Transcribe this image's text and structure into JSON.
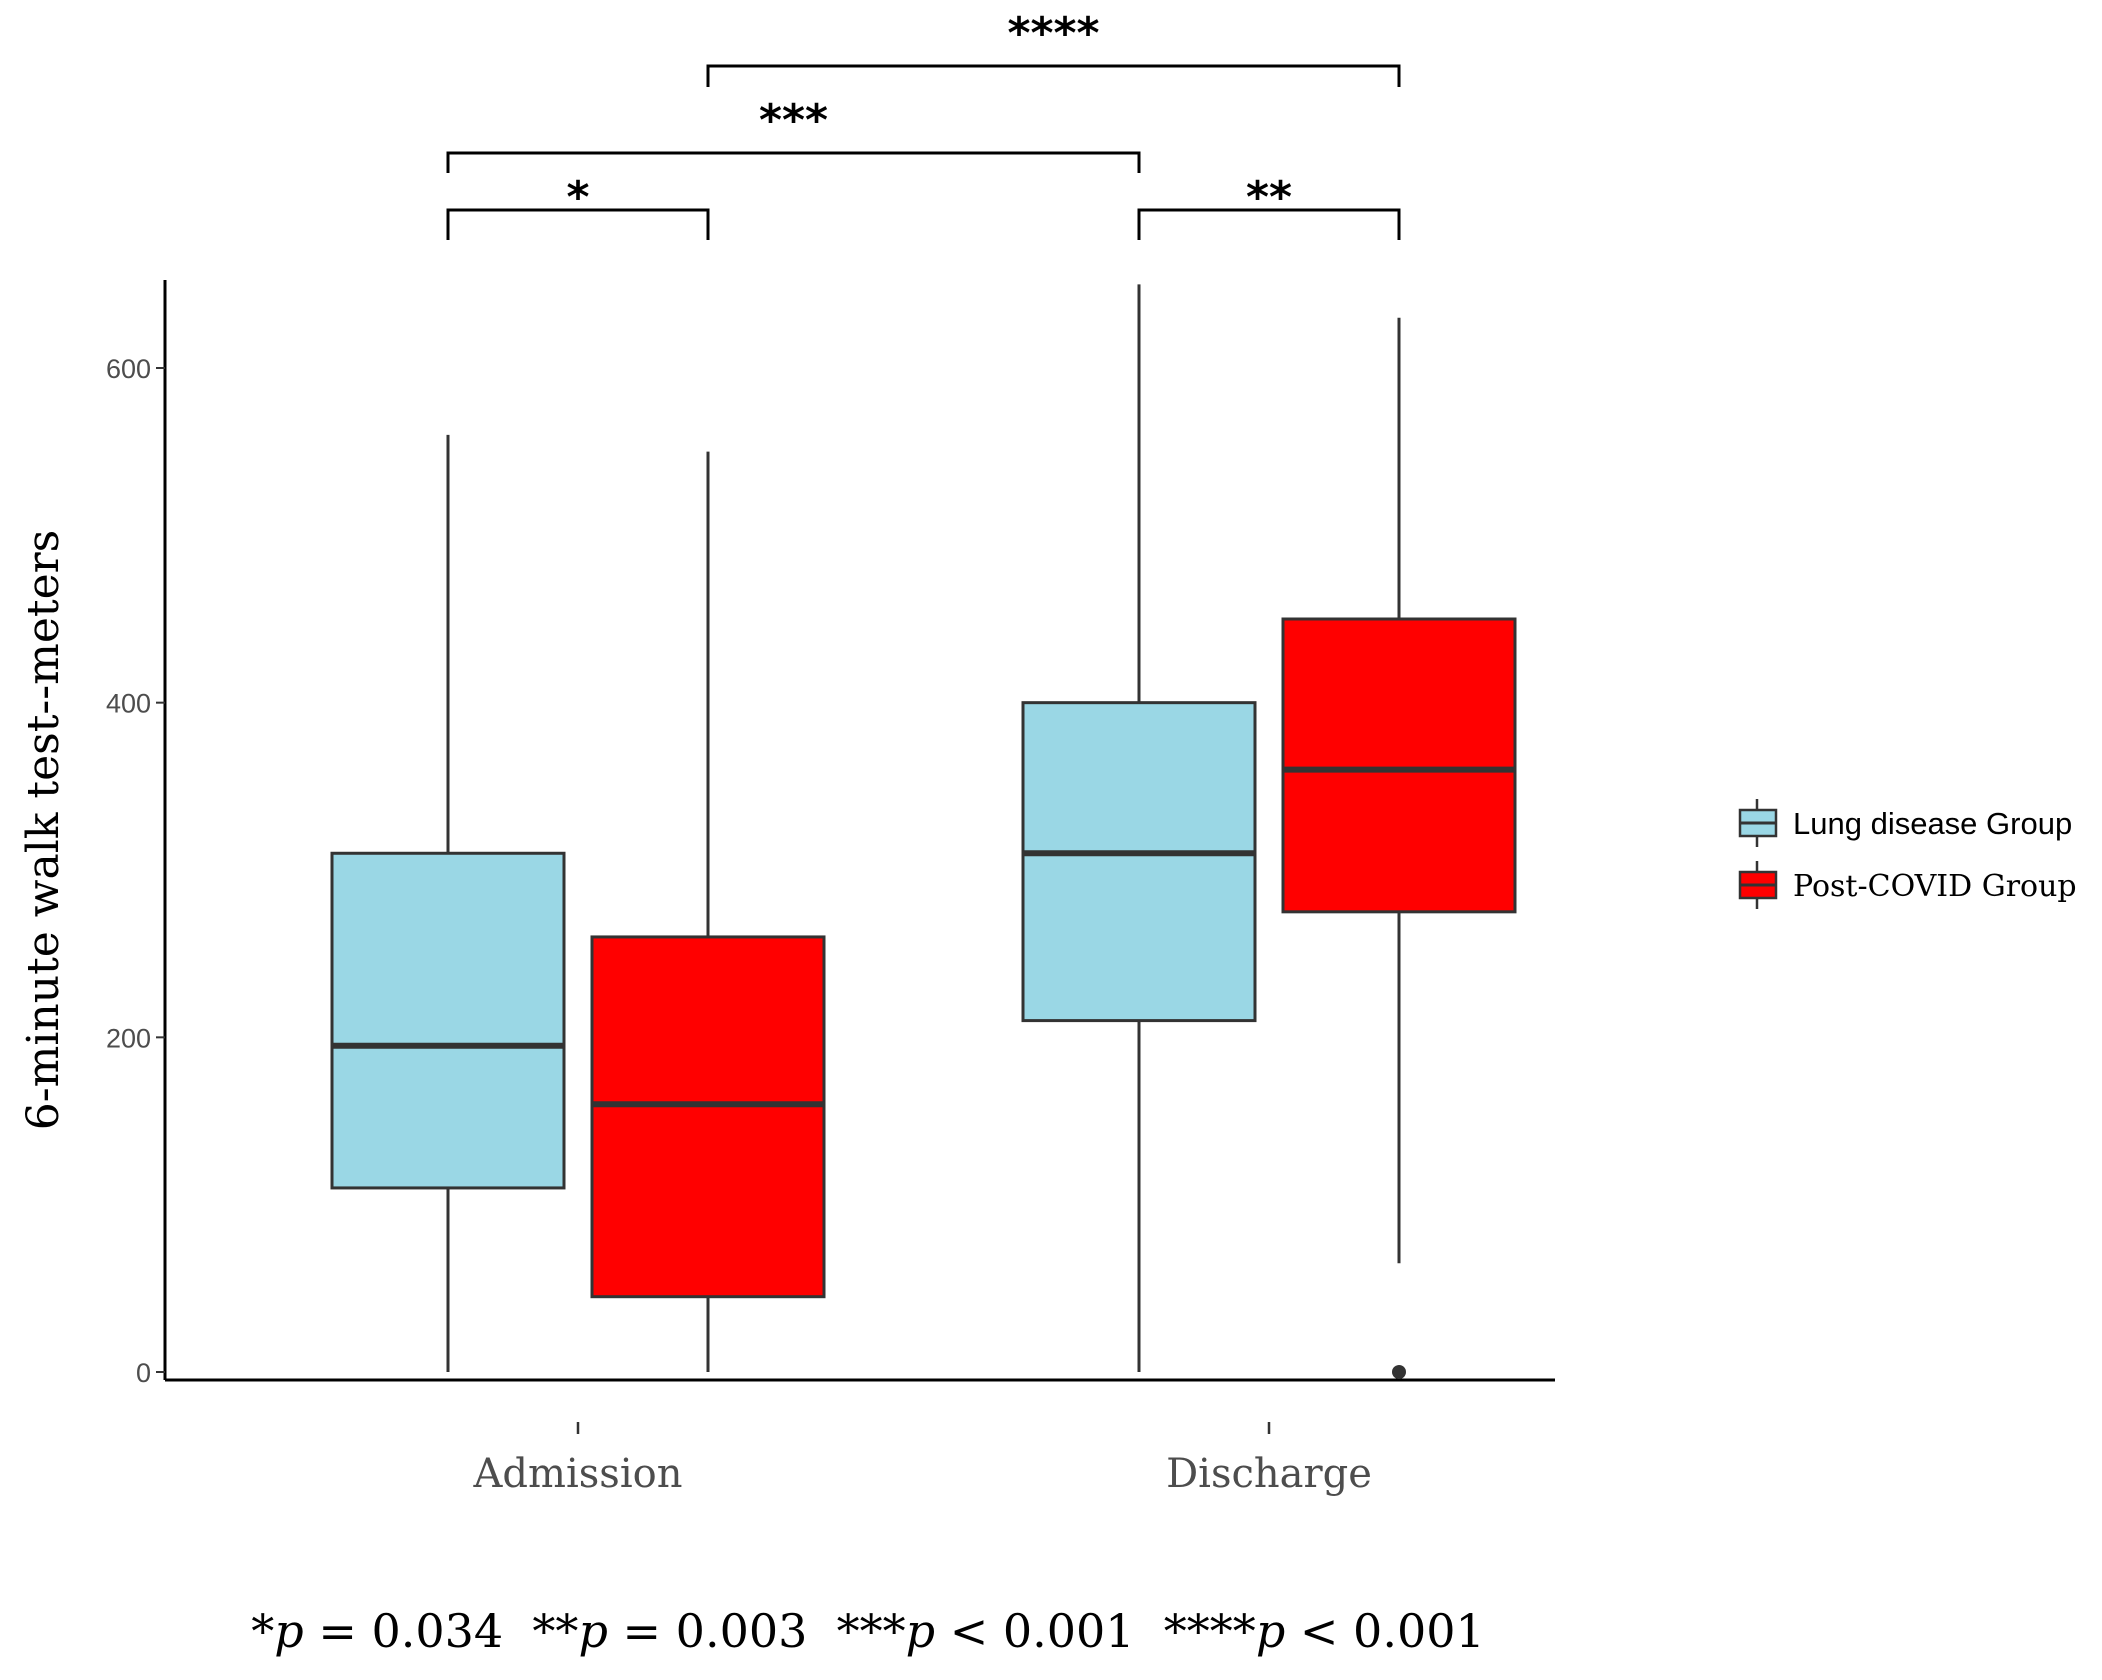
{
  "chart_data": {
    "type": "box",
    "title": "",
    "ylabel": "6-minute walk test--meters",
    "xlabel": "",
    "categories": [
      "Admission",
      "Discharge"
    ],
    "ylim": [
      -5,
      655
    ],
    "yticks": [
      0,
      200,
      400,
      600
    ],
    "grid": false,
    "legend_position": "right",
    "series": [
      {
        "name": "Lung disease Group",
        "color": "#9ad7e5",
        "boxes": [
          {
            "category": "Admission",
            "min": 0,
            "q1": 110,
            "median": 195,
            "q3": 310,
            "max": 560,
            "outliers": []
          },
          {
            "category": "Discharge",
            "min": 0,
            "q1": 210,
            "median": 310,
            "q3": 400,
            "max": 650,
            "outliers": []
          }
        ]
      },
      {
        "name": "Post-COVID Group",
        "color": "#ff0000",
        "boxes": [
          {
            "category": "Admission",
            "min": 0,
            "q1": 45,
            "median": 160,
            "q3": 260,
            "max": 550,
            "outliers": []
          },
          {
            "category": "Discharge",
            "min": 65,
            "q1": 275,
            "median": 360,
            "q3": 450,
            "max": 630,
            "outliers": [
              0
            ]
          }
        ]
      }
    ],
    "significance": [
      {
        "label": "*",
        "from": {
          "category": "Admission",
          "series": 0
        },
        "to": {
          "category": "Admission",
          "series": 1
        }
      },
      {
        "label": "**",
        "from": {
          "category": "Discharge",
          "series": 0
        },
        "to": {
          "category": "Discharge",
          "series": 1
        }
      },
      {
        "label": "***",
        "from": {
          "category": "Admission",
          "series": 0
        },
        "to": {
          "category": "Discharge",
          "series": 0
        }
      },
      {
        "label": "****",
        "from": {
          "category": "Admission",
          "series": 1
        },
        "to": {
          "category": "Discharge",
          "series": 1
        }
      }
    ],
    "footnote": [
      {
        "stars": "*",
        "sym": "p",
        "rel": " = 0.034"
      },
      {
        "stars": "**",
        "sym": "p",
        "rel": " = 0.003"
      },
      {
        "stars": "***",
        "sym": "p",
        "rel": " < 0.001"
      },
      {
        "stars": "****",
        "sym": "p",
        "rel": " < 0.001"
      }
    ]
  }
}
